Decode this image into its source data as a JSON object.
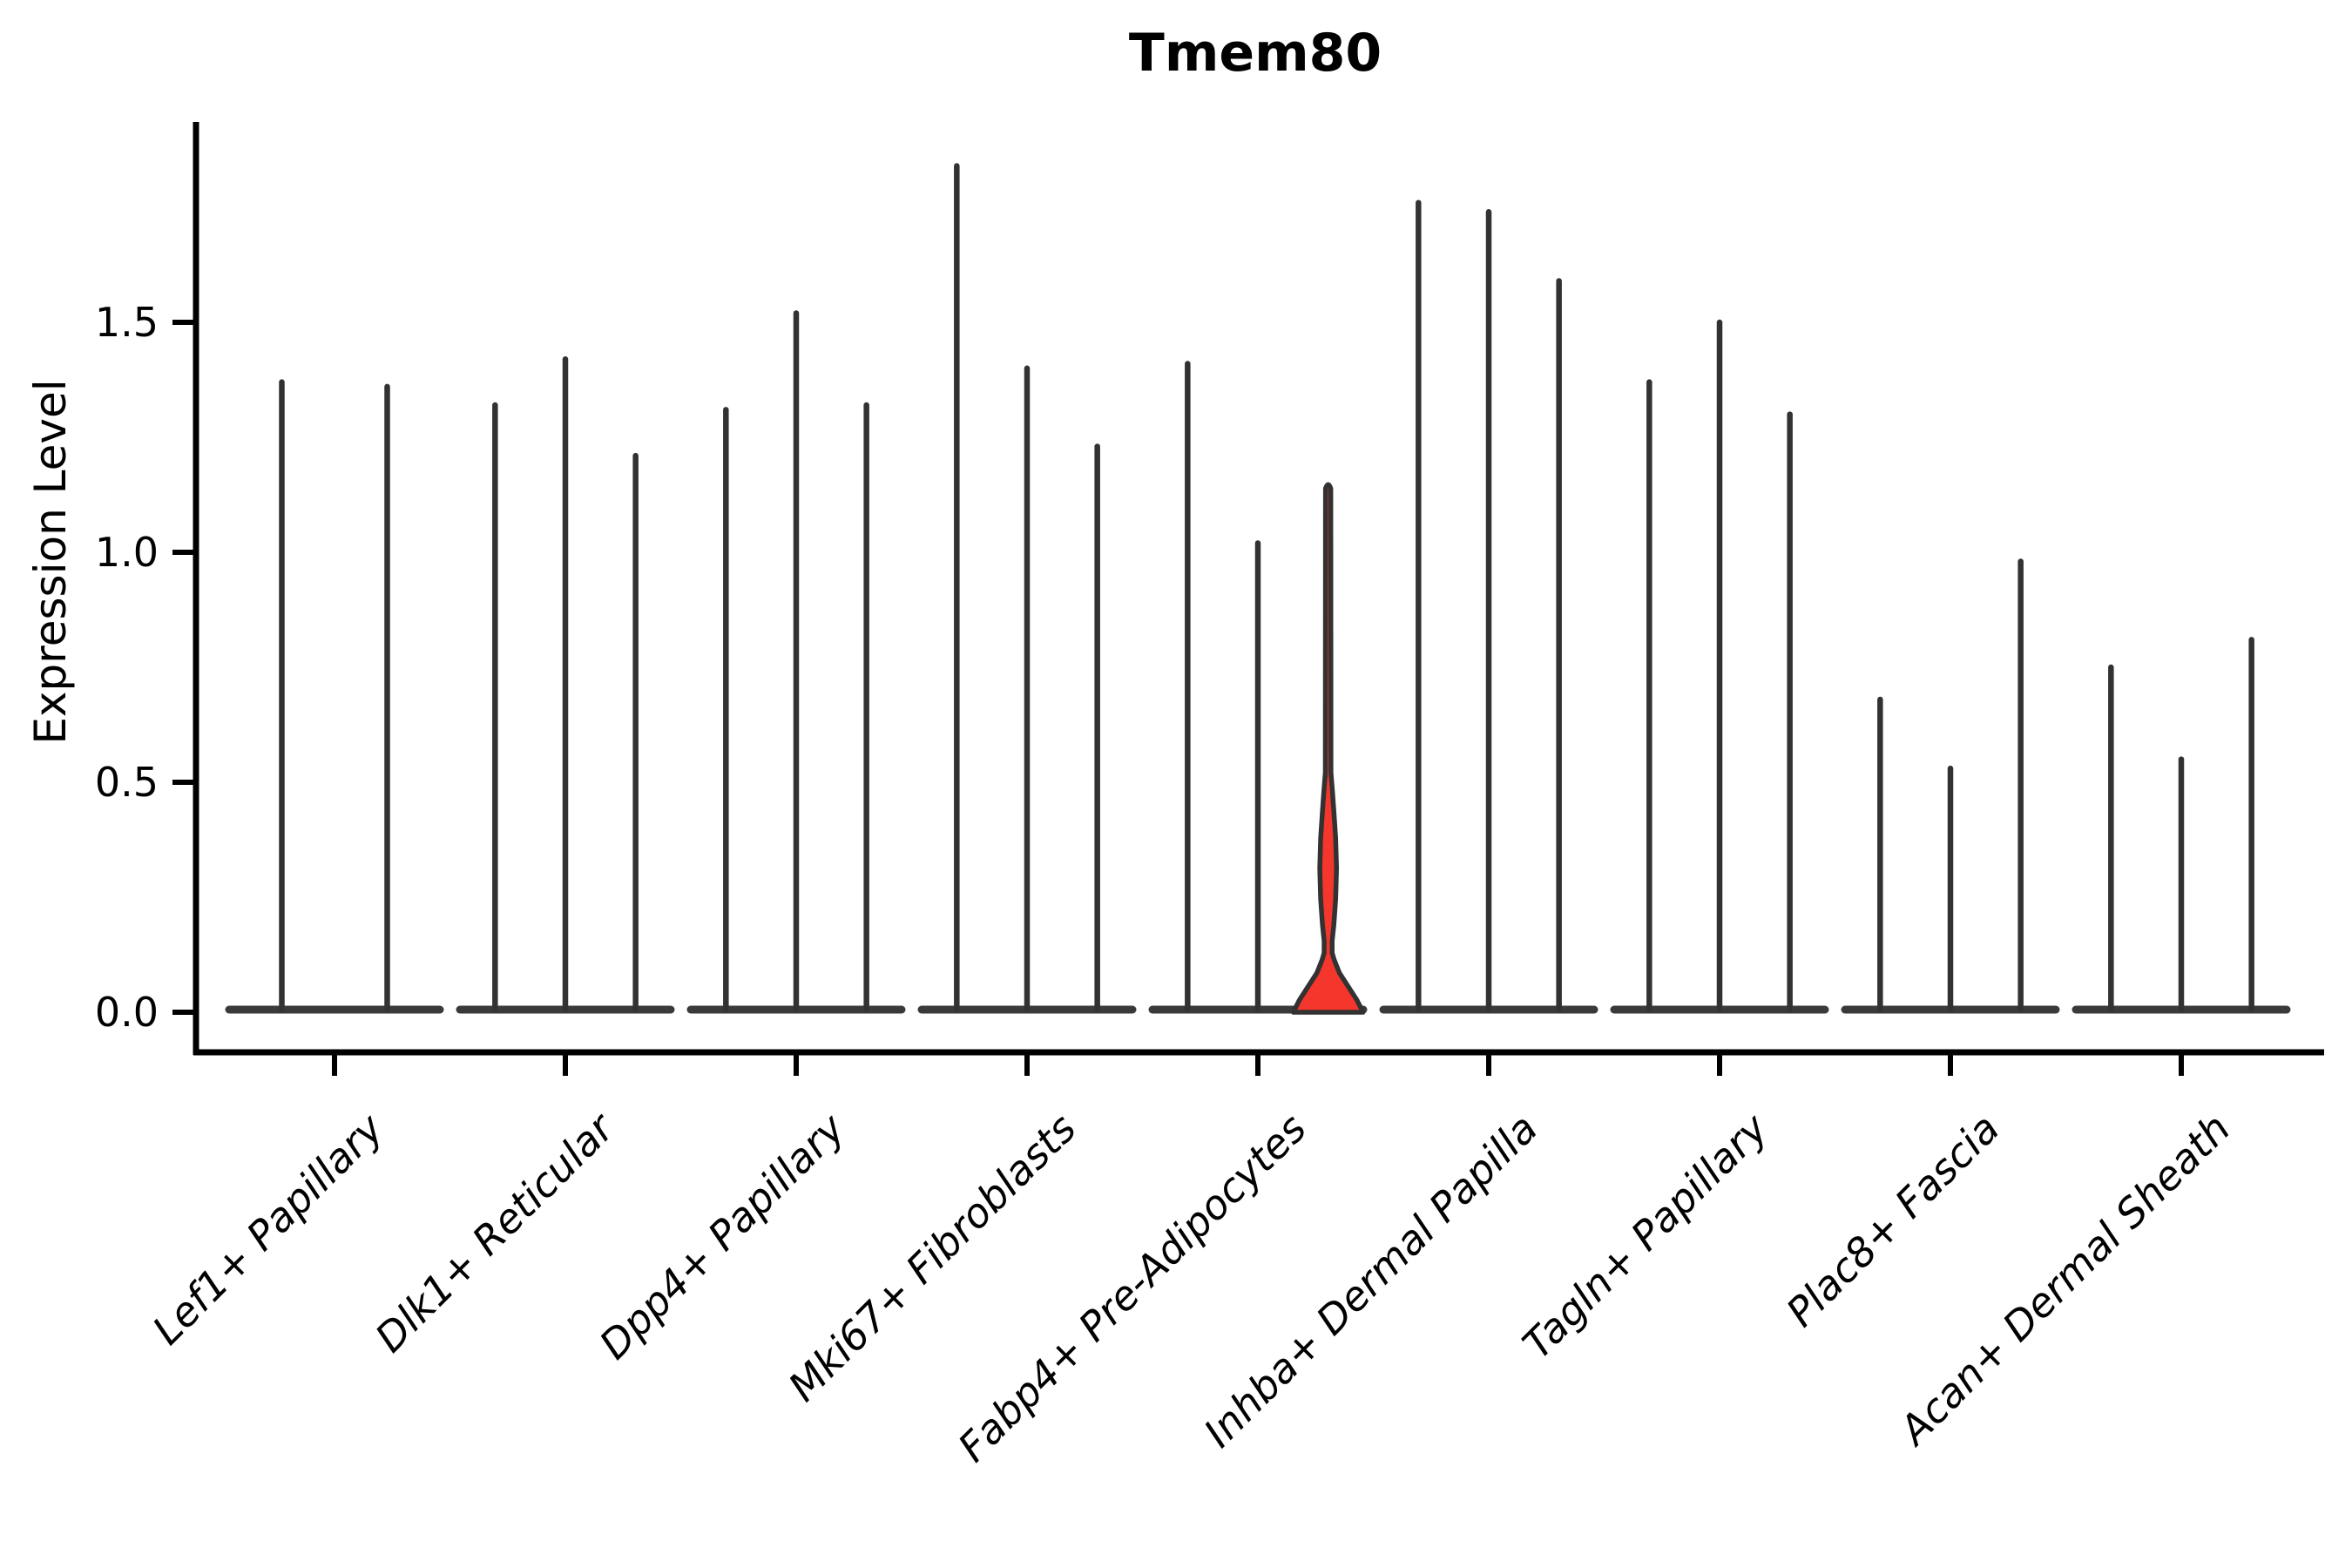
{
  "title": "Tmem80",
  "colors": {
    "violin_line": "#323232",
    "base_line": "#3a3a3a",
    "highlight_fill": "#f5362c",
    "axis": "#000000"
  },
  "chart_data": {
    "type": "violin",
    "title": "Tmem80",
    "xlabel": "",
    "ylabel": "Expression Level",
    "ylim": [
      0,
      1.93
    ],
    "yticks": [
      0.0,
      0.5,
      1.0,
      1.5
    ],
    "ytick_labels": [
      "0.0",
      "0.5",
      "1.0",
      "1.5"
    ],
    "grid": false,
    "legend_position": "none",
    "x_tick_rotation_deg": 45,
    "description": "Stacked-spike violin plot; each violin has nearly all density at expression 0 (flat wide base) plus a thin spike up to its max expression. One violin is highlighted red with a visible density bulge.",
    "categories": [
      "Lef1+ Papillary",
      "Dlk1+ Reticular",
      "Dpp4+ Papillary",
      "Mki67+ Fibroblasts",
      "Fabp4+ Pre-Adipocytes",
      "Inhba+ Dermal Papilla",
      "Tagln+ Papillary",
      "Plac8+ Fascia",
      "Acan+ Dermal Sheath"
    ],
    "groups": [
      {
        "category": "Lef1+ Papillary",
        "violins": [
          {
            "max": 1.37
          },
          {
            "max": 1.36
          }
        ]
      },
      {
        "category": "Dlk1+ Reticular",
        "violins": [
          {
            "max": 1.32
          },
          {
            "max": 1.42
          },
          {
            "max": 1.21
          }
        ]
      },
      {
        "category": "Dpp4+ Papillary",
        "violins": [
          {
            "max": 1.31
          },
          {
            "max": 1.52
          },
          {
            "max": 1.32
          }
        ]
      },
      {
        "category": "Mki67+ Fibroblasts",
        "violins": [
          {
            "max": 1.84
          },
          {
            "max": 1.4
          },
          {
            "max": 1.23
          }
        ]
      },
      {
        "category": "Fabp4+ Pre-Adipocytes",
        "violins": [
          {
            "max": 1.41
          },
          {
            "max": 1.02
          },
          {
            "max": 1.15,
            "highlight": true,
            "bulge": {
              "waist": 0.13,
              "peak": 0.31,
              "top": 0.5
            }
          }
        ]
      },
      {
        "category": "Inhba+ Dermal Papilla",
        "violins": [
          {
            "max": 1.76
          },
          {
            "max": 1.74
          },
          {
            "max": 1.59
          }
        ]
      },
      {
        "category": "Tagln+ Papillary",
        "violins": [
          {
            "max": 1.37
          },
          {
            "max": 1.5
          },
          {
            "max": 1.3
          }
        ]
      },
      {
        "category": "Plac8+ Fascia",
        "violins": [
          {
            "max": 0.68
          },
          {
            "max": 0.53
          },
          {
            "max": 0.98
          }
        ]
      },
      {
        "category": "Acan+ Dermal Sheath",
        "violins": [
          {
            "max": 0.75
          },
          {
            "max": 0.55
          },
          {
            "max": 0.81
          }
        ]
      }
    ]
  }
}
